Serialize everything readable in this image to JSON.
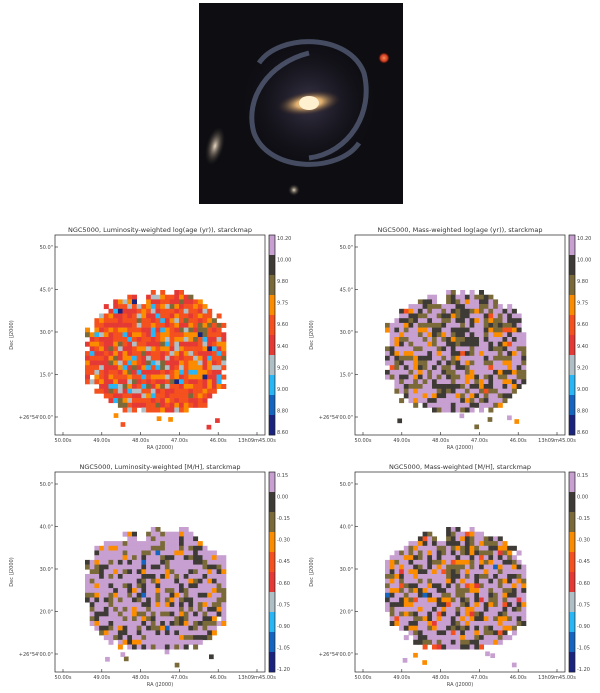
{
  "galaxy_image": {
    "description_icon": "galaxy-photo"
  },
  "panels": [
    {
      "title": "NGC5000, Luminosity-weighted log(age (yr)), starckmap",
      "colorbar_ticks": [
        "10.20",
        "10.00",
        "9.80",
        "9.75",
        "9.60",
        "9.40",
        "9.20",
        "9.00",
        "8.80",
        "8.60"
      ],
      "x_ticks": [
        "50.00s",
        "49.00s",
        "48.00s",
        "47.00s",
        "46.00s",
        "13h09m45.00s"
      ],
      "y_ticks": [
        "50.0\"",
        "45.0\"",
        "30.0\"",
        "15.0\"",
        "+26°54'00.0\""
      ],
      "xlabel": "RA (J2000)",
      "ylabel": "Dec (J2000)",
      "cmap": "age",
      "map_key": "lum_age"
    },
    {
      "title": "NGC5000, Mass-weighted log(age (yr)), starckmap",
      "colorbar_ticks": [
        "10.20",
        "10.00",
        "9.80",
        "9.75",
        "9.60",
        "9.40",
        "9.20",
        "9.00",
        "8.80",
        "8.60"
      ],
      "x_ticks": [
        "50.00s",
        "49.00s",
        "48.00s",
        "47.00s",
        "46.00s",
        "13h09m45.00s"
      ],
      "y_ticks": [
        "50.0\"",
        "45.0\"",
        "30.0\"",
        "15.0\"",
        "+26°54'00.0\""
      ],
      "xlabel": "RA (J2000)",
      "ylabel": "Dec (J2000)",
      "cmap": "age",
      "map_key": "mass_age"
    },
    {
      "title": "NGC5000, Luminosity-weighted [M/H], starckmap",
      "colorbar_ticks": [
        "0.15",
        "0.00",
        "-0.15",
        "-0.30",
        "-0.45",
        "-0.60",
        "-0.75",
        "-0.90",
        "-1.05",
        "-1.20"
      ],
      "x_ticks": [
        "50.00s",
        "49.00s",
        "48.00s",
        "47.00s",
        "46.00s",
        "13h09m45.00s"
      ],
      "y_ticks": [
        "50.0\"",
        "40.0\"",
        "30.0\"",
        "20.0\"",
        "+26°54'00.0\""
      ],
      "xlabel": "RA (J2000)",
      "ylabel": "Dec (J2000)",
      "cmap": "met",
      "map_key": "lum_met"
    },
    {
      "title": "NGC5000, Mass-weighted [M/H], starckmap",
      "colorbar_ticks": [
        "0.15",
        "0.00",
        "-0.15",
        "-0.30",
        "-0.45",
        "-0.60",
        "-0.75",
        "-0.90",
        "-1.05",
        "-1.20"
      ],
      "x_ticks": [
        "50.00s",
        "49.00s",
        "48.00s",
        "47.00s",
        "46.00s",
        "13h09m45.00s"
      ],
      "y_ticks": [
        "50.0\"",
        "40.0\"",
        "30.0\"",
        "20.0\"",
        "+26°54'00.0\""
      ],
      "xlabel": "RA (J2000)",
      "ylabel": "Dec (J2000)",
      "cmap": "met",
      "map_key": "mass_met"
    }
  ]
}
